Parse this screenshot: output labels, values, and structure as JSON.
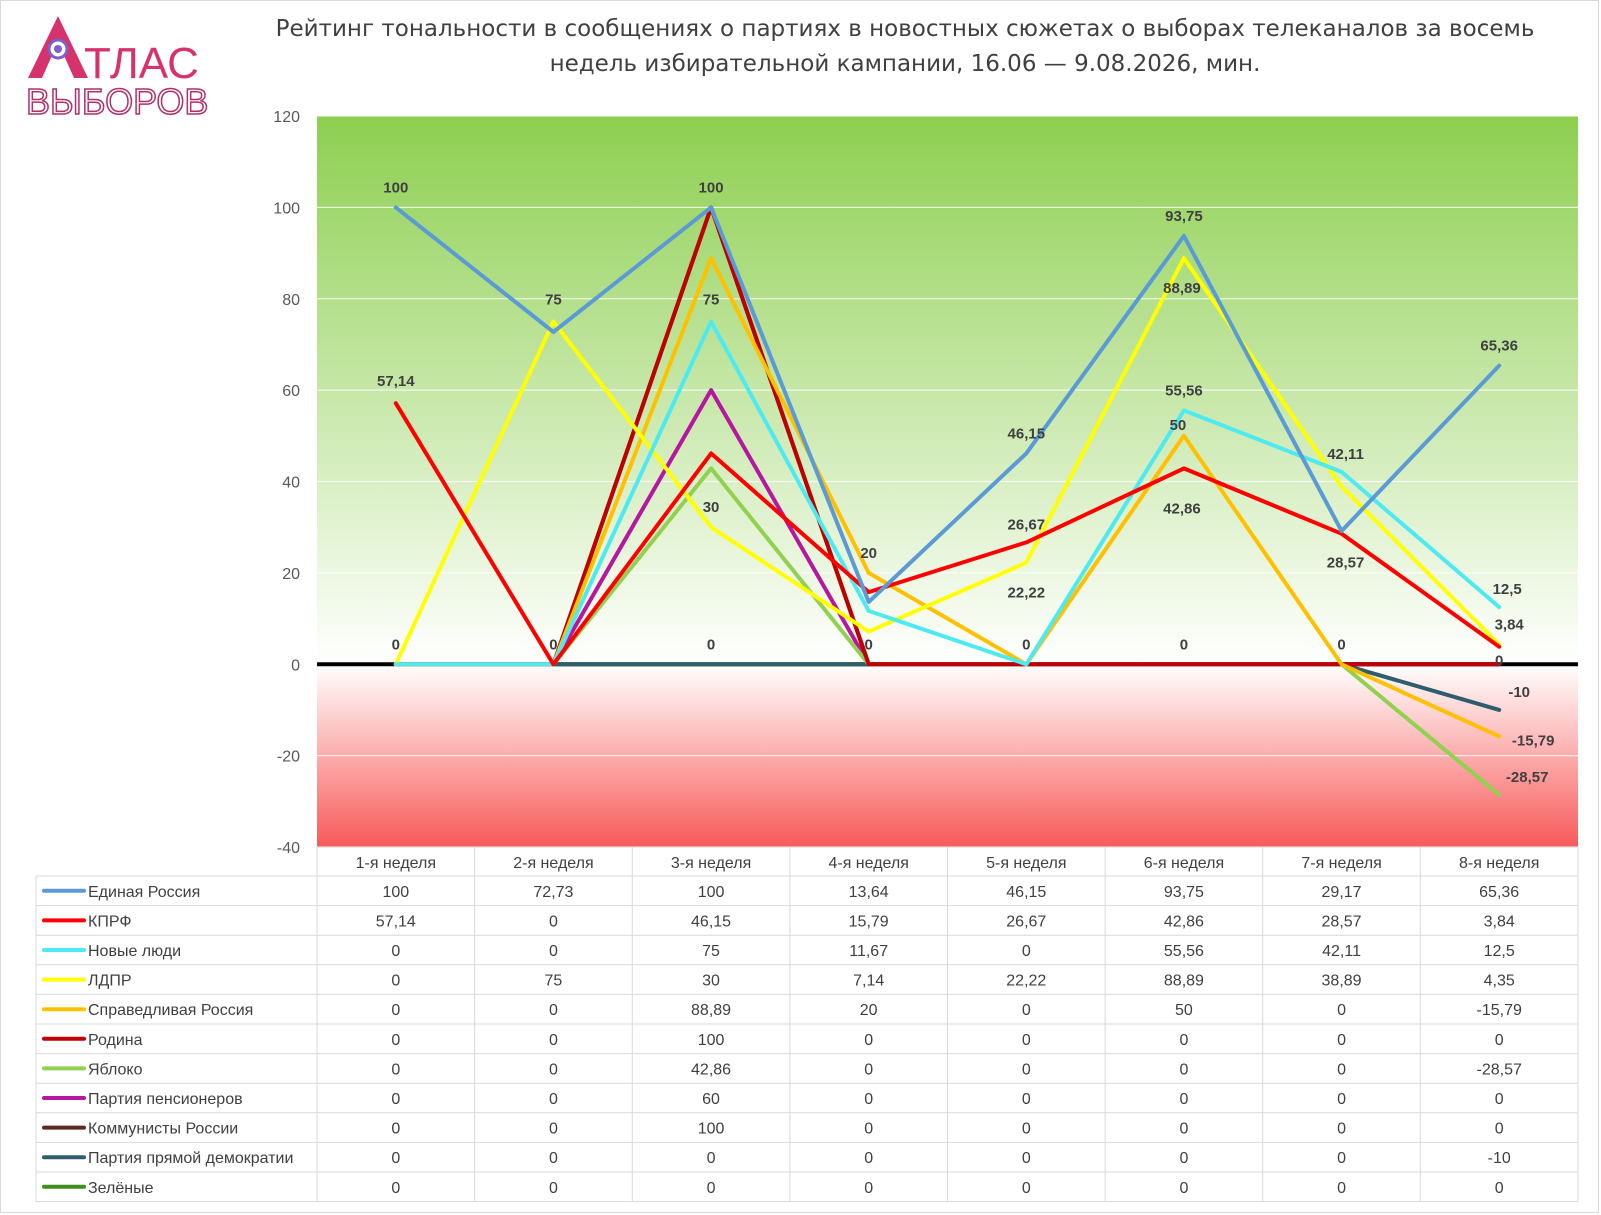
{
  "logo": {
    "line1": "ТЛАС",
    "line2": "ВЫБОРОВ"
  },
  "chart_data": {
    "type": "line",
    "title": "Рейтинг тональности в сообщениях о партиях в новостных сюжетах о выборах телеканалов за восемь недель избирательной кампании, 16.06 — 9.08.2026, мин.",
    "ylim": [
      -40,
      120
    ],
    "yticks": [
      "120",
      "100",
      "80",
      "60",
      "40",
      "20",
      "0",
      "-20",
      "-40"
    ],
    "ytick_values": [
      120,
      100,
      80,
      60,
      40,
      20,
      0,
      -20,
      -40
    ],
    "grid": true,
    "legend": "data-table",
    "background": {
      "positive_color": "#8dcf50",
      "negative_color": "#f85a5a"
    },
    "categories": [
      "1-я неделя",
      "2-я неделя",
      "3-я неделя",
      "4-я неделя",
      "5-я неделя",
      "6-я неделя",
      "7-я неделя",
      "8-я неделя"
    ],
    "series": [
      {
        "name": "Единая Россия",
        "color": "#5b9bd5",
        "values": [
          100,
          72.73,
          100,
          13.64,
          46.15,
          93.75,
          29.17,
          65.36
        ],
        "display": [
          "100",
          "72,73",
          "100",
          "13,64",
          "46,15",
          "93,75",
          "29,17",
          "65,36"
        ]
      },
      {
        "name": "КПРФ",
        "color": "#ff0000",
        "values": [
          57.14,
          0,
          46.15,
          15.79,
          26.67,
          42.86,
          28.57,
          3.84
        ],
        "display": [
          "57,14",
          "0",
          "46,15",
          "15,79",
          "26,67",
          "42,86",
          "28,57",
          "3,84"
        ]
      },
      {
        "name": "Новые люди",
        "color": "#4deaf2",
        "values": [
          0,
          0,
          75,
          11.67,
          0,
          55.56,
          42.11,
          12.5
        ],
        "display": [
          "0",
          "0",
          "75",
          "11,67",
          "0",
          "55,56",
          "42,11",
          "12,5"
        ]
      },
      {
        "name": "ЛДПР",
        "color": "#ffff00",
        "values": [
          0,
          75,
          30,
          7.14,
          22.22,
          88.89,
          38.89,
          4.35
        ],
        "display": [
          "0",
          "75",
          "30",
          "7,14",
          "22,22",
          "88,89",
          "38,89",
          "4,35"
        ]
      },
      {
        "name": "Справедливая Россия",
        "color": "#ffc000",
        "values": [
          0,
          0,
          88.89,
          20,
          0,
          50,
          0,
          -15.79
        ],
        "display": [
          "0",
          "0",
          "88,89",
          "20",
          "0",
          "50",
          "0",
          "-15,79"
        ]
      },
      {
        "name": "Родина",
        "color": "#c00000",
        "values": [
          0,
          0,
          100,
          0,
          0,
          0,
          0,
          0
        ],
        "display": [
          "0",
          "0",
          "100",
          "0",
          "0",
          "0",
          "0",
          "0"
        ]
      },
      {
        "name": "Яблоко",
        "color": "#92d050",
        "values": [
          0,
          0,
          42.86,
          0,
          0,
          0,
          0,
          -28.57
        ],
        "display": [
          "0",
          "0",
          "42,86",
          "0",
          "0",
          "0",
          "0",
          "-28,57"
        ]
      },
      {
        "name": "Партия пенсионеров",
        "color": "#b5179e",
        "values": [
          0,
          0,
          60,
          0,
          0,
          0,
          0,
          0
        ],
        "display": [
          "0",
          "0",
          "60",
          "0",
          "0",
          "0",
          "0",
          "0"
        ]
      },
      {
        "name": "Коммунисты России",
        "color": "#5c2a1e",
        "values": [
          0,
          0,
          100,
          0,
          0,
          0,
          0,
          0
        ],
        "display": [
          "0",
          "0",
          "100",
          "0",
          "0",
          "0",
          "0",
          "0"
        ]
      },
      {
        "name": "Партия прямой демократии",
        "color": "#2e5e6e",
        "values": [
          0,
          0,
          0,
          0,
          0,
          0,
          0,
          -10
        ],
        "display": [
          "0",
          "0",
          "0",
          "0",
          "0",
          "0",
          "0",
          "-10"
        ]
      },
      {
        "name": "Зелёные",
        "color": "#3c8f1c",
        "values": [
          0,
          0,
          0,
          0,
          0,
          0,
          0,
          0
        ],
        "display": [
          "0",
          "0",
          "0",
          "0",
          "0",
          "0",
          "0",
          "0"
        ]
      }
    ],
    "annotations": [
      {
        "text": "100",
        "category": "1-я неделя",
        "y": 100
      },
      {
        "text": "57,14",
        "category": "1-я неделя",
        "y": 57.14
      },
      {
        "text": "0",
        "category": "1-я неделя",
        "y": 0
      },
      {
        "text": "75",
        "category": "2-я неделя",
        "y": 75
      },
      {
        "text": "0",
        "category": "2-я неделя",
        "y": 0
      },
      {
        "text": "100",
        "category": "3-я неделя",
        "y": 100
      },
      {
        "text": "75",
        "category": "3-я неделя",
        "y": 75
      },
      {
        "text": "30",
        "category": "3-я неделя",
        "y": 30
      },
      {
        "text": "0",
        "category": "3-я неделя",
        "y": 0
      },
      {
        "text": "20",
        "category": "4-я неделя",
        "y": 20
      },
      {
        "text": "0",
        "category": "4-я неделя",
        "y": 0
      },
      {
        "text": "46,15",
        "category": "5-я неделя",
        "y": 46.15
      },
      {
        "text": "26,67",
        "category": "5-я неделя",
        "y": 26.67
      },
      {
        "text": "22,22",
        "category": "5-я неделя",
        "y": 22.22
      },
      {
        "text": "0",
        "category": "5-я неделя",
        "y": 0
      },
      {
        "text": "93,75",
        "category": "6-я неделя",
        "y": 93.75
      },
      {
        "text": "88,89",
        "category": "6-я неделя",
        "y": 88.89
      },
      {
        "text": "55,56",
        "category": "6-я неделя",
        "y": 55.56
      },
      {
        "text": "50",
        "category": "6-я неделя",
        "y": 50
      },
      {
        "text": "42,86",
        "category": "6-я неделя",
        "y": 42.86
      },
      {
        "text": "0",
        "category": "6-я неделя",
        "y": 0
      },
      {
        "text": "42,11",
        "category": "7-я неделя",
        "y": 42.11
      },
      {
        "text": "28,57",
        "category": "7-я неделя",
        "y": 28.57
      },
      {
        "text": "0",
        "category": "7-я неделя",
        "y": 0
      },
      {
        "text": "65,36",
        "category": "8-я неделя",
        "y": 65.36
      },
      {
        "text": "12,5",
        "category": "8-я неделя",
        "y": 12.5
      },
      {
        "text": "3,84",
        "category": "8-я неделя",
        "y": 3.84
      },
      {
        "text": "0",
        "category": "8-я неделя",
        "y": 0
      },
      {
        "text": "-10",
        "category": "8-я неделя",
        "y": -10
      },
      {
        "text": "-15,79",
        "category": "8-я неделя",
        "y": -15.79
      },
      {
        "text": "-28,57",
        "category": "8-я неделя",
        "y": -28.57
      }
    ]
  }
}
